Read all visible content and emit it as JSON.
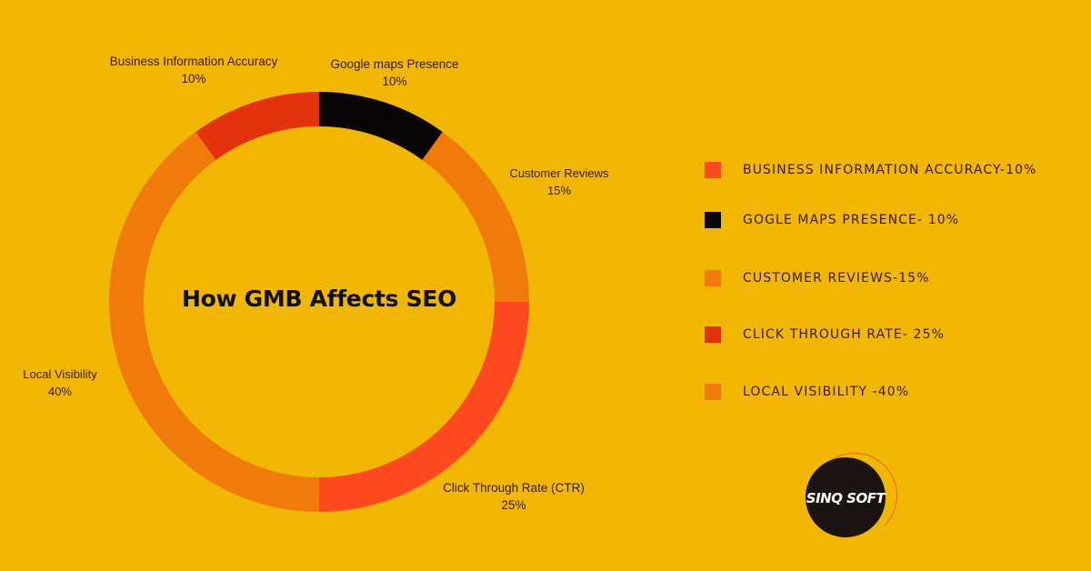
{
  "title": "How GMB Affects SEO",
  "chart_data": {
    "type": "pie",
    "subtype": "donut",
    "title": "How GMB Affects SEO",
    "categories": [
      "Google maps Presence",
      "Customer Reviews",
      "Click Through Rate (CTR)",
      "Local Visibility",
      "Business Information Accuracy"
    ],
    "values": [
      10,
      15,
      25,
      40,
      10
    ],
    "colors": [
      "#0a0505",
      "#f07a0a",
      "#ff4a1f",
      "#f07a0a",
      "#e5320e"
    ],
    "unit": "%",
    "legend_position": "right"
  },
  "slice_labels": [
    {
      "name": "Business Information Accuracy",
      "value": "10%"
    },
    {
      "name": "Google maps Presence",
      "value": "10%"
    },
    {
      "name": "Customer Reviews",
      "value": "15%"
    },
    {
      "name": "Local Visibility",
      "value": "40%"
    },
    {
      "name": "Click Through Rate (CTR)",
      "value": "25%"
    }
  ],
  "legend": [
    {
      "label": "BUSINESS INFORMATION ACCURACY-10%",
      "color": "#ff4a1f"
    },
    {
      "label": "GOGLE MAPS PRESENCE- 10%",
      "color": "#0a0505"
    },
    {
      "label": "CUSTOMER REVIEWS-15%",
      "color": "#f07a0a"
    },
    {
      "label": "CLICK THROUGH RATE- 25%",
      "color": "#e5320e"
    },
    {
      "label": "LOCAL VISIBILITY -40%",
      "color": "#f07a0a"
    }
  ],
  "logo": {
    "text": "SINQ SOFT"
  }
}
